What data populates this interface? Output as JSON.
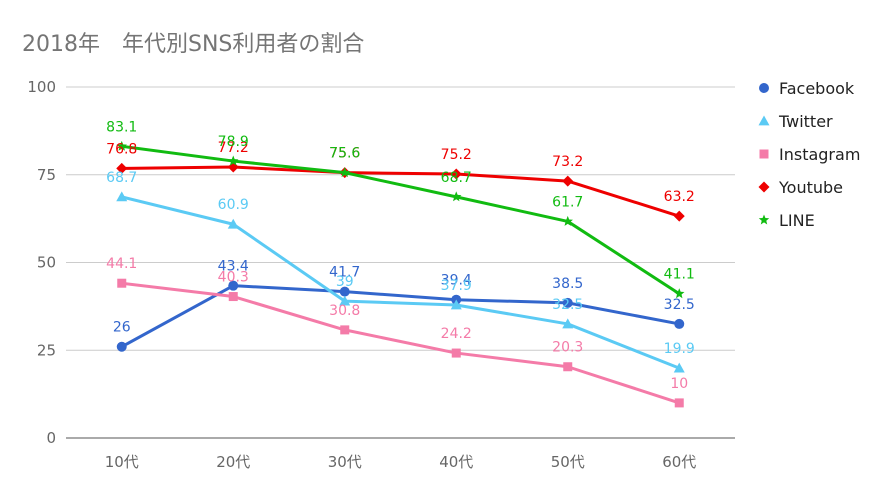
{
  "chart_data": {
    "type": "line",
    "title": "2018年　年代別SNS利用者の割合",
    "categories": [
      "10代",
      "20代",
      "30代",
      "40代",
      "50代",
      "60代"
    ],
    "ylim": [
      0,
      100
    ],
    "yticks": [
      0,
      25,
      50,
      75,
      100
    ],
    "grid": true,
    "legend_position": "right",
    "series": [
      {
        "name": "Facebook",
        "color": "#3366cc",
        "marker": "circle",
        "values": [
          26,
          43.4,
          41.7,
          39.4,
          38.5,
          32.5
        ]
      },
      {
        "name": "Twitter",
        "color": "#5bcaf4",
        "marker": "triangle",
        "values": [
          68.7,
          60.9,
          39,
          37.9,
          32.5,
          19.9
        ]
      },
      {
        "name": "Instagram",
        "color": "#f47ba8",
        "marker": "square",
        "values": [
          44.1,
          40.3,
          30.8,
          24.2,
          20.3,
          10
        ]
      },
      {
        "name": "Youtube",
        "color": "#ee0000",
        "marker": "diamond",
        "values": [
          76.8,
          77.2,
          75.6,
          75.2,
          73.2,
          63.2
        ]
      },
      {
        "name": "LINE",
        "color": "#11bb11",
        "marker": "star",
        "values": [
          83.1,
          78.9,
          75.6,
          68.7,
          61.7,
          41.1
        ]
      }
    ]
  }
}
